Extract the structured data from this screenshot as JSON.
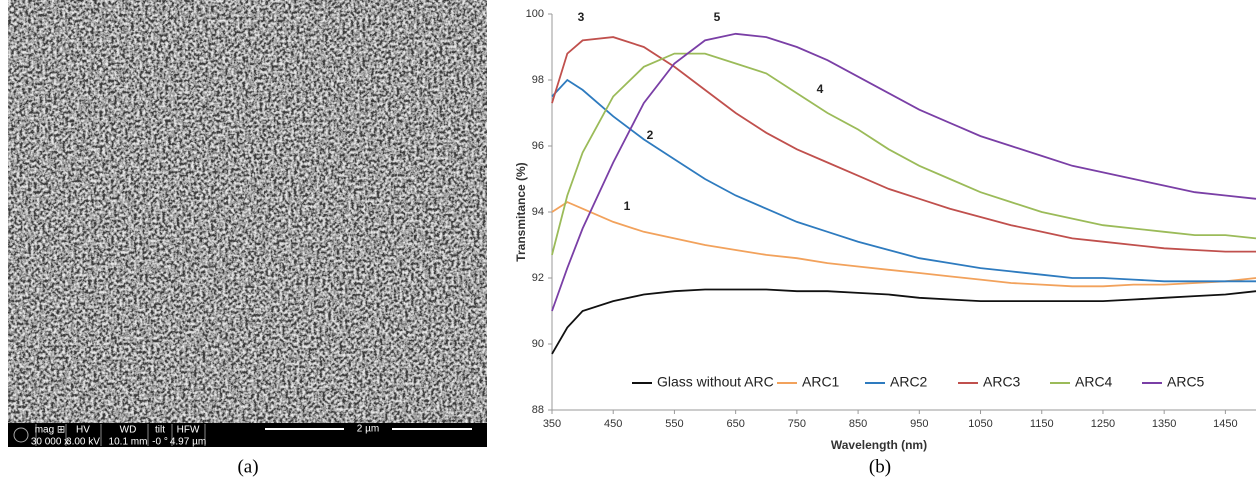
{
  "panel_a": {
    "info_bar": {
      "labels": [
        "mag ⊞",
        "HV",
        "WD",
        "tilt",
        "HFW"
      ],
      "values": [
        "30 000 x",
        "3.00 kV",
        "10.1 mm",
        "-0 °",
        "4.97 µm"
      ],
      "scale_bar": "2 µm"
    }
  },
  "captions": [
    "(a)",
    "(b)"
  ],
  "chart_data": {
    "type": "line",
    "x_label": "Wavelength (nm)",
    "y_label": "Transmitance (%)",
    "x": [
      350,
      375,
      400,
      450,
      500,
      550,
      600,
      650,
      700,
      750,
      800,
      850,
      900,
      950,
      1000,
      1050,
      1100,
      1150,
      1200,
      1250,
      1300,
      1350,
      1400,
      1450,
      1500
    ],
    "series": [
      {
        "name": "Glass without ARC",
        "color": "#111111",
        "values": [
          89.7,
          90.5,
          91.0,
          91.3,
          91.5,
          91.6,
          91.65,
          91.65,
          91.65,
          91.6,
          91.6,
          91.55,
          91.5,
          91.4,
          91.35,
          91.3,
          91.3,
          91.3,
          91.3,
          91.3,
          91.35,
          91.4,
          91.45,
          91.5,
          91.6
        ]
      },
      {
        "name": "ARC1",
        "color": "#f2a25c",
        "values": [
          94.0,
          94.3,
          94.1,
          93.7,
          93.4,
          93.2,
          93.0,
          92.85,
          92.7,
          92.6,
          92.45,
          92.35,
          92.25,
          92.15,
          92.05,
          91.95,
          91.85,
          91.8,
          91.75,
          91.75,
          91.8,
          91.8,
          91.85,
          91.9,
          92.0
        ]
      },
      {
        "name": "ARC2",
        "color": "#2e7bbf",
        "values": [
          97.5,
          98.0,
          97.7,
          96.9,
          96.2,
          95.6,
          95.0,
          94.5,
          94.1,
          93.7,
          93.4,
          93.1,
          92.85,
          92.6,
          92.45,
          92.3,
          92.2,
          92.1,
          92.0,
          92.0,
          91.95,
          91.9,
          91.9,
          91.9,
          91.9
        ]
      },
      {
        "name": "ARC3",
        "color": "#c0504d",
        "values": [
          97.3,
          98.8,
          99.2,
          99.3,
          99.0,
          98.4,
          97.7,
          97.0,
          96.4,
          95.9,
          95.5,
          95.1,
          94.7,
          94.4,
          94.1,
          93.85,
          93.6,
          93.4,
          93.2,
          93.1,
          93.0,
          92.9,
          92.85,
          92.8,
          92.8
        ]
      },
      {
        "name": "ARC4",
        "color": "#9bbb59",
        "values": [
          92.7,
          94.5,
          95.8,
          97.5,
          98.4,
          98.8,
          98.8,
          98.5,
          98.2,
          97.6,
          97.0,
          96.5,
          95.9,
          95.4,
          95.0,
          94.6,
          94.3,
          94.0,
          93.8,
          93.6,
          93.5,
          93.4,
          93.3,
          93.3,
          93.2
        ]
      },
      {
        "name": "ARC5",
        "color": "#7a3fa6",
        "values": [
          91.0,
          92.3,
          93.5,
          95.5,
          97.3,
          98.5,
          99.2,
          99.4,
          99.3,
          99.0,
          98.6,
          98.1,
          97.6,
          97.1,
          96.7,
          96.3,
          96.0,
          95.7,
          95.4,
          95.2,
          95.0,
          94.8,
          94.6,
          94.5,
          94.4
        ]
      }
    ],
    "annotations": [
      "1",
      "2",
      "3",
      "4",
      "5"
    ],
    "xlim": [
      350,
      1500
    ],
    "xticks": [
      350,
      450,
      550,
      650,
      750,
      850,
      950,
      1050,
      1150,
      1250,
      1350,
      1450
    ],
    "ylim": [
      88,
      100
    ],
    "yticks": [
      88,
      90,
      92,
      94,
      96,
      98,
      100
    ],
    "grid": false,
    "legend": "bottom"
  }
}
